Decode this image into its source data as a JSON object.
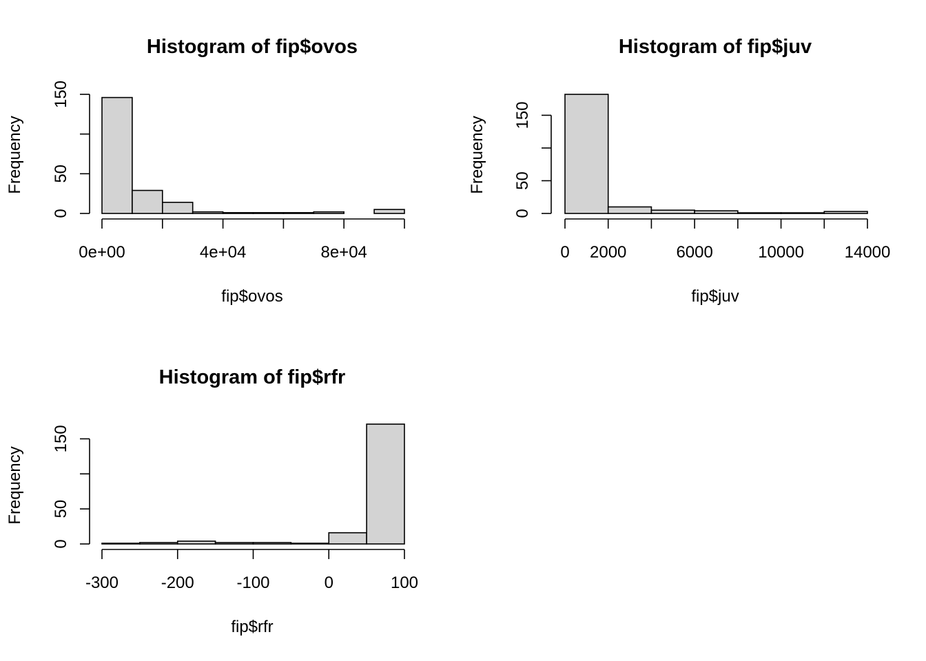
{
  "chart_data": [
    {
      "type": "bar",
      "title": "Histogram of fip$ovos",
      "xlabel": "fip$ovos",
      "ylabel": "Frequency",
      "xlim": [
        0,
        100000
      ],
      "ylim": [
        0,
        150
      ],
      "bins": [
        {
          "x0": 0,
          "x1": 10000,
          "count": 146
        },
        {
          "x0": 10000,
          "x1": 20000,
          "count": 29
        },
        {
          "x0": 20000,
          "x1": 30000,
          "count": 14
        },
        {
          "x0": 30000,
          "x1": 40000,
          "count": 2
        },
        {
          "x0": 40000,
          "x1": 50000,
          "count": 1
        },
        {
          "x0": 50000,
          "x1": 60000,
          "count": 1
        },
        {
          "x0": 60000,
          "x1": 70000,
          "count": 1
        },
        {
          "x0": 70000,
          "x1": 80000,
          "count": 2
        },
        {
          "x0": 80000,
          "x1": 90000,
          "count": 0
        },
        {
          "x0": 90000,
          "x1": 100000,
          "count": 5
        }
      ],
      "x_ticks": [
        {
          "value": 0,
          "label": "0e+00"
        },
        {
          "value": 20000,
          "label": ""
        },
        {
          "value": 40000,
          "label": "4e+04"
        },
        {
          "value": 60000,
          "label": ""
        },
        {
          "value": 80000,
          "label": "8e+04"
        },
        {
          "value": 100000,
          "label": ""
        }
      ],
      "y_ticks": [
        {
          "value": 0,
          "label": "0"
        },
        {
          "value": 50,
          "label": "50"
        },
        {
          "value": 100,
          "label": ""
        },
        {
          "value": 150,
          "label": "150"
        }
      ]
    },
    {
      "type": "bar",
      "title": "Histogram of fip$juv",
      "xlabel": "fip$juv",
      "ylabel": "Frequency",
      "xlim": [
        0,
        14000
      ],
      "ylim": [
        0,
        182
      ],
      "bins": [
        {
          "x0": 0,
          "x1": 2000,
          "count": 182
        },
        {
          "x0": 2000,
          "x1": 4000,
          "count": 10
        },
        {
          "x0": 4000,
          "x1": 6000,
          "count": 5
        },
        {
          "x0": 6000,
          "x1": 8000,
          "count": 4
        },
        {
          "x0": 8000,
          "x1": 10000,
          "count": 1
        },
        {
          "x0": 10000,
          "x1": 12000,
          "count": 1
        },
        {
          "x0": 12000,
          "x1": 14000,
          "count": 3
        }
      ],
      "x_ticks": [
        {
          "value": 0,
          "label": "0"
        },
        {
          "value": 2000,
          "label": "2000"
        },
        {
          "value": 4000,
          "label": ""
        },
        {
          "value": 6000,
          "label": "6000"
        },
        {
          "value": 8000,
          "label": ""
        },
        {
          "value": 10000,
          "label": "10000"
        },
        {
          "value": 12000,
          "label": ""
        },
        {
          "value": 14000,
          "label": "14000"
        }
      ],
      "y_ticks": [
        {
          "value": 0,
          "label": "0"
        },
        {
          "value": 50,
          "label": "50"
        },
        {
          "value": 100,
          "label": ""
        },
        {
          "value": 150,
          "label": "150"
        }
      ]
    },
    {
      "type": "bar",
      "title": "Histogram of fip$rfr",
      "xlabel": "fip$rfr",
      "ylabel": "Frequency",
      "xlim": [
        -300,
        100
      ],
      "ylim": [
        0,
        170
      ],
      "bins": [
        {
          "x0": -300,
          "x1": -250,
          "count": 1
        },
        {
          "x0": -250,
          "x1": -200,
          "count": 2
        },
        {
          "x0": -200,
          "x1": -150,
          "count": 4
        },
        {
          "x0": -150,
          "x1": -100,
          "count": 2
        },
        {
          "x0": -100,
          "x1": -50,
          "count": 2
        },
        {
          "x0": -50,
          "x1": 0,
          "count": 1
        },
        {
          "x0": 0,
          "x1": 50,
          "count": 16
        },
        {
          "x0": 50,
          "x1": 100,
          "count": 171
        }
      ],
      "x_ticks": [
        {
          "value": -300,
          "label": "-300"
        },
        {
          "value": -200,
          "label": "-200"
        },
        {
          "value": -100,
          "label": "-100"
        },
        {
          "value": 0,
          "label": "0"
        },
        {
          "value": 100,
          "label": "100"
        }
      ],
      "y_ticks": [
        {
          "value": 0,
          "label": "0"
        },
        {
          "value": 50,
          "label": "50"
        },
        {
          "value": 100,
          "label": ""
        },
        {
          "value": 150,
          "label": "150"
        }
      ]
    }
  ]
}
